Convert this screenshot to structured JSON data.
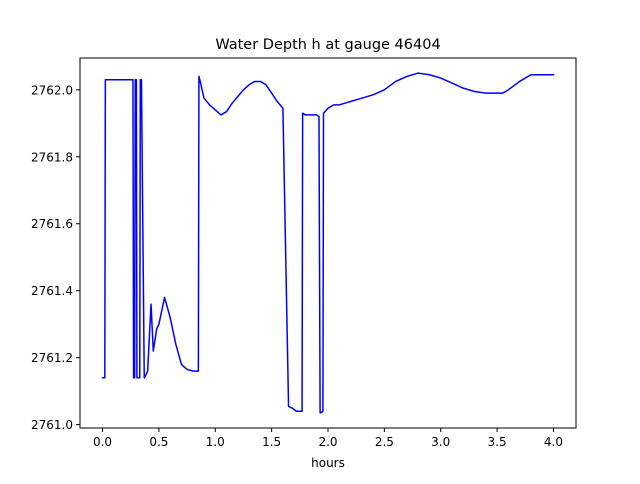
{
  "chart_data": {
    "type": "line",
    "title": "Water Depth h at gauge 46404",
    "xlabel": "hours",
    "ylabel": "",
    "xlim": [
      -0.2,
      4.2
    ],
    "ylim": [
      2760.99,
      2762.095
    ],
    "x_ticks": [
      0.0,
      0.5,
      1.0,
      1.5,
      2.0,
      2.5,
      3.0,
      3.5,
      4.0
    ],
    "x_tick_labels": [
      "0.0",
      "0.5",
      "1.0",
      "1.5",
      "2.0",
      "2.5",
      "3.0",
      "3.5",
      "4.0"
    ],
    "y_ticks": [
      2761.0,
      2761.2,
      2761.4,
      2761.6,
      2761.8,
      2762.0
    ],
    "y_tick_labels": [
      "2761.0",
      "2761.2",
      "2761.4",
      "2761.6",
      "2761.8",
      "2762.0"
    ],
    "grid": false,
    "legend": "none",
    "series": [
      {
        "color": "#0000ff",
        "x": [
          0.0,
          0.02,
          0.025,
          0.27,
          0.275,
          0.285,
          0.29,
          0.3,
          0.305,
          0.33,
          0.335,
          0.345,
          0.37,
          0.38,
          0.4,
          0.43,
          0.45,
          0.48,
          0.5,
          0.55,
          0.6,
          0.65,
          0.7,
          0.75,
          0.8,
          0.85,
          0.855,
          0.87,
          0.9,
          0.95,
          1.0,
          1.05,
          1.1,
          1.15,
          1.2,
          1.25,
          1.3,
          1.35,
          1.4,
          1.45,
          1.5,
          1.55,
          1.6,
          1.65,
          1.675,
          1.68,
          1.72,
          1.77,
          1.775,
          1.8,
          1.85,
          1.9,
          1.92,
          1.93,
          1.935,
          1.955,
          1.96,
          2.0,
          2.05,
          2.1,
          2.15,
          2.2,
          2.3,
          2.4,
          2.5,
          2.6,
          2.7,
          2.8,
          2.9,
          3.0,
          3.1,
          3.2,
          3.3,
          3.4,
          3.5,
          3.55,
          3.6,
          3.7,
          3.8,
          3.9,
          3.95,
          4.0
        ],
        "y": [
          2761.14,
          2761.14,
          2762.03,
          2762.03,
          2761.14,
          2761.14,
          2762.03,
          2762.03,
          2761.14,
          2761.14,
          2762.03,
          2762.03,
          2761.14,
          2761.145,
          2761.16,
          2761.36,
          2761.22,
          2761.285,
          2761.3,
          2761.38,
          2761.32,
          2761.24,
          2761.18,
          2761.165,
          2761.16,
          2761.16,
          2762.04,
          2762.02,
          2761.975,
          2761.955,
          2761.94,
          2761.925,
          2761.935,
          2761.96,
          2761.98,
          2762.0,
          2762.015,
          2762.025,
          2762.025,
          2762.015,
          2761.99,
          2761.965,
          2761.945,
          2761.055,
          2761.05,
          2761.05,
          2761.04,
          2761.04,
          2761.93,
          2761.925,
          2761.925,
          2761.925,
          2761.92,
          2761.035,
          2761.035,
          2761.04,
          2761.93,
          2761.945,
          2761.955,
          2761.955,
          2761.96,
          2761.965,
          2761.975,
          2761.985,
          2762.0,
          2762.025,
          2762.04,
          2762.05,
          2762.045,
          2762.035,
          2762.02,
          2762.005,
          2761.995,
          2761.99,
          2761.99,
          2761.99,
          2762.0,
          2762.025,
          2762.045,
          2762.045,
          2762.045,
          2762.045
        ]
      }
    ]
  }
}
